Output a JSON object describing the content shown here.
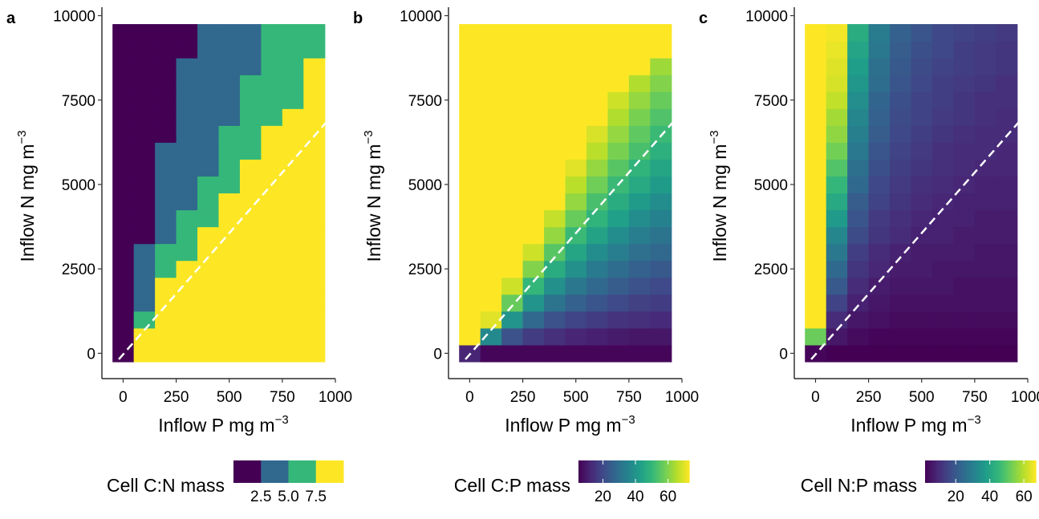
{
  "figure": {
    "refline_color": "#ffffff",
    "colors": {
      "viridis": [
        "#440154",
        "#482878",
        "#3e4a89",
        "#31688e",
        "#26828e",
        "#1f9e89",
        "#35b779",
        "#6ece58",
        "#b5de2b",
        "#fde725"
      ]
    }
  },
  "chart_data": [
    {
      "panel": "a",
      "type": "heatmap",
      "xlabel": "Inflow P mg m",
      "xlabel_sup": "−3",
      "ylabel": "Inflow N mg m",
      "ylabel_sup": "−3",
      "xlim": [
        -100,
        1000
      ],
      "ylim": [
        -750,
        10250
      ],
      "xticks": [
        0,
        250,
        500,
        750,
        1000
      ],
      "yticks": [
        0,
        2500,
        5000,
        7500,
        10000
      ],
      "xtick_labels": [
        "0",
        "250",
        "500",
        "750",
        "1000"
      ],
      "ytick_labels": [
        "0",
        "2500",
        "5000",
        "7500",
        "10000"
      ],
      "x_centers": [
        0,
        100,
        200,
        300,
        400,
        500,
        600,
        700,
        800,
        900
      ],
      "y_centers": [
        0,
        500,
        1000,
        1500,
        2000,
        2500,
        3000,
        3500,
        4000,
        4500,
        5000,
        5500,
        6000,
        6500,
        7000,
        7500,
        8000,
        8500,
        9000,
        9500
      ],
      "legend": {
        "title": "Cell C:N mass",
        "kind": "discrete",
        "colors": [
          "#440154",
          "#31688e",
          "#35b779",
          "#fde725"
        ],
        "labels": [
          "2.5",
          "5.0",
          "7.5"
        ]
      },
      "reference_line": {
        "style": "dashed",
        "x": [
          -100,
          1000
        ],
        "y": [
          -750,
          7150
        ]
      },
      "description": "Discretized C:N classes (1=lowest purple, 4=highest yellow); rows from N=0 upward",
      "values": [
        [
          1,
          4,
          4,
          4,
          4,
          4,
          4,
          4,
          4,
          4
        ],
        [
          1,
          4,
          4,
          4,
          4,
          4,
          4,
          4,
          4,
          4
        ],
        [
          1,
          3,
          4,
          4,
          4,
          4,
          4,
          4,
          4,
          4
        ],
        [
          1,
          2,
          4,
          4,
          4,
          4,
          4,
          4,
          4,
          4
        ],
        [
          1,
          2,
          4,
          4,
          4,
          4,
          4,
          4,
          4,
          4
        ],
        [
          1,
          2,
          3,
          4,
          4,
          4,
          4,
          4,
          4,
          4
        ],
        [
          1,
          2,
          3,
          3,
          4,
          4,
          4,
          4,
          4,
          4
        ],
        [
          1,
          1,
          2,
          3,
          4,
          4,
          4,
          4,
          4,
          4
        ],
        [
          1,
          1,
          2,
          3,
          3,
          4,
          4,
          4,
          4,
          4
        ],
        [
          1,
          1,
          2,
          2,
          3,
          4,
          4,
          4,
          4,
          4
        ],
        [
          1,
          1,
          2,
          2,
          3,
          3,
          4,
          4,
          4,
          4
        ],
        [
          1,
          1,
          2,
          2,
          2,
          3,
          4,
          4,
          4,
          4
        ],
        [
          1,
          1,
          2,
          2,
          2,
          3,
          3,
          4,
          4,
          4
        ],
        [
          1,
          1,
          1,
          2,
          2,
          3,
          3,
          4,
          4,
          4
        ],
        [
          1,
          1,
          1,
          2,
          2,
          2,
          3,
          3,
          4,
          4
        ],
        [
          1,
          1,
          1,
          2,
          2,
          2,
          3,
          3,
          3,
          4
        ],
        [
          1,
          1,
          1,
          2,
          2,
          2,
          3,
          3,
          3,
          4
        ],
        [
          1,
          1,
          1,
          2,
          2,
          2,
          2,
          3,
          3,
          4
        ],
        [
          1,
          1,
          1,
          1,
          2,
          2,
          2,
          3,
          3,
          3
        ],
        [
          1,
          1,
          1,
          1,
          2,
          2,
          2,
          3,
          3,
          3
        ]
      ]
    },
    {
      "panel": "b",
      "type": "heatmap",
      "xlabel": "Inflow P mg m",
      "xlabel_sup": "−3",
      "ylabel": "Inflow N mg m",
      "ylabel_sup": "−3",
      "xlim": [
        -100,
        1000
      ],
      "ylim": [
        -750,
        10250
      ],
      "xticks": [
        0,
        250,
        500,
        750,
        1000
      ],
      "yticks": [
        0,
        2500,
        5000,
        7500,
        10000
      ],
      "xtick_labels": [
        "0",
        "250",
        "500",
        "750",
        "1000"
      ],
      "ytick_labels": [
        "0",
        "2500",
        "5000",
        "7500",
        "10000"
      ],
      "x_centers": [
        0,
        100,
        200,
        300,
        400,
        500,
        600,
        700,
        800,
        900
      ],
      "y_centers": [
        0,
        500,
        1000,
        1500,
        2000,
        2500,
        3000,
        3500,
        4000,
        4500,
        5000,
        5500,
        6000,
        6500,
        7000,
        7500,
        8000,
        8500,
        9000,
        9500
      ],
      "legend": {
        "title": "Cell C:P mass",
        "kind": "continuous",
        "min": 5,
        "max": 73,
        "ticks": [
          20,
          40,
          60
        ],
        "labels": [
          "20",
          "40",
          "60"
        ]
      },
      "reference_line": {
        "style": "dashed",
        "x": [
          -100,
          1000
        ],
        "y": [
          -750,
          7150
        ]
      },
      "description": "Cell C:P mass; rows from N=0 upward",
      "values": [
        [
          12,
          6,
          6,
          6,
          6,
          6,
          6,
          6,
          6,
          6
        ],
        [
          73,
          37,
          22,
          17,
          14,
          12,
          11,
          10,
          9,
          9
        ],
        [
          73,
          70,
          40,
          28,
          22,
          19,
          17,
          15,
          14,
          13
        ],
        [
          73,
          73,
          57,
          40,
          31,
          26,
          23,
          20,
          18,
          17
        ],
        [
          73,
          73,
          68,
          50,
          39,
          32,
          28,
          25,
          22,
          20
        ],
        [
          73,
          73,
          73,
          60,
          47,
          39,
          33,
          29,
          26,
          24
        ],
        [
          73,
          73,
          73,
          68,
          55,
          45,
          38,
          34,
          30,
          28
        ],
        [
          73,
          73,
          73,
          73,
          62,
          51,
          44,
          38,
          34,
          31
        ],
        [
          73,
          73,
          73,
          73,
          67,
          57,
          49,
          43,
          38,
          35
        ],
        [
          73,
          73,
          73,
          73,
          73,
          62,
          53,
          47,
          42,
          38
        ],
        [
          73,
          73,
          73,
          73,
          73,
          66,
          58,
          51,
          46,
          42
        ],
        [
          73,
          73,
          73,
          73,
          73,
          70,
          62,
          55,
          49,
          45
        ],
        [
          73,
          73,
          73,
          73,
          73,
          73,
          66,
          59,
          53,
          48
        ],
        [
          73,
          73,
          73,
          73,
          73,
          73,
          69,
          62,
          56,
          51
        ],
        [
          73,
          73,
          73,
          73,
          73,
          73,
          73,
          65,
          59,
          54
        ],
        [
          73,
          73,
          73,
          73,
          73,
          73,
          73,
          68,
          62,
          57
        ],
        [
          73,
          73,
          73,
          73,
          73,
          73,
          73,
          73,
          65,
          60
        ],
        [
          73,
          73,
          73,
          73,
          73,
          73,
          73,
          73,
          73,
          63
        ],
        [
          73,
          73,
          73,
          73,
          73,
          73,
          73,
          73,
          73,
          73
        ],
        [
          73,
          73,
          73,
          73,
          73,
          73,
          73,
          73,
          73,
          73
        ]
      ]
    },
    {
      "panel": "c",
      "type": "heatmap",
      "xlabel": "Inflow P mg m",
      "xlabel_sup": "−3",
      "ylabel": "Inflow N mg m",
      "ylabel_sup": "−3",
      "xlim": [
        -100,
        1000
      ],
      "ylim": [
        -750,
        10250
      ],
      "xticks": [
        0,
        250,
        500,
        750,
        1000
      ],
      "yticks": [
        0,
        2500,
        5000,
        7500,
        10000
      ],
      "xtick_labels": [
        "0",
        "250",
        "500",
        "750",
        "1000"
      ],
      "ytick_labels": [
        "0",
        "2500",
        "5000",
        "7500",
        "10000"
      ],
      "x_centers": [
        0,
        100,
        200,
        300,
        400,
        500,
        600,
        700,
        800,
        900
      ],
      "y_centers": [
        0,
        500,
        1000,
        1500,
        2000,
        2500,
        3000,
        3500,
        4000,
        4500,
        5000,
        5500,
        6000,
        6500,
        7000,
        7500,
        8000,
        8500,
        9000,
        9500
      ],
      "legend": {
        "title": "Cell N:P mass",
        "kind": "continuous",
        "min": 2,
        "max": 67,
        "ticks": [
          20,
          40,
          60
        ],
        "labels": [
          "20",
          "40",
          "60"
        ]
      },
      "reference_line": {
        "style": "dashed",
        "x": [
          -100,
          1000
        ],
        "y": [
          -750,
          7150
        ]
      },
      "description": "Cell N:P mass; rows from N=0 upward",
      "values": [
        [
          3,
          2,
          2,
          2,
          2,
          2,
          2,
          2,
          2,
          2
        ],
        [
          52,
          6,
          4,
          3,
          3,
          3,
          3,
          3,
          3,
          3
        ],
        [
          67,
          10,
          6,
          5,
          4,
          4,
          4,
          4,
          4,
          4
        ],
        [
          67,
          15,
          8,
          6,
          5,
          5,
          5,
          5,
          5,
          5
        ],
        [
          67,
          20,
          10,
          7,
          6,
          6,
          6,
          5,
          5,
          5
        ],
        [
          67,
          24,
          12,
          9,
          7,
          7,
          6,
          6,
          6,
          6
        ],
        [
          67,
          28,
          14,
          10,
          8,
          7,
          7,
          7,
          6,
          6
        ],
        [
          67,
          32,
          17,
          12,
          10,
          8,
          8,
          7,
          7,
          7
        ],
        [
          67,
          37,
          19,
          13,
          11,
          9,
          8,
          8,
          7,
          7
        ],
        [
          67,
          41,
          21,
          15,
          12,
          10,
          9,
          8,
          8,
          8
        ],
        [
          67,
          45,
          24,
          16,
          13,
          11,
          10,
          9,
          8,
          8
        ],
        [
          67,
          49,
          26,
          18,
          14,
          12,
          11,
          10,
          9,
          9
        ],
        [
          67,
          53,
          28,
          19,
          15,
          13,
          11,
          10,
          10,
          9
        ],
        [
          67,
          56,
          30,
          21,
          16,
          14,
          12,
          11,
          10,
          10
        ],
        [
          67,
          58,
          32,
          22,
          17,
          15,
          13,
          12,
          11,
          10
        ],
        [
          67,
          61,
          34,
          23,
          18,
          15,
          14,
          12,
          11,
          11
        ],
        [
          67,
          63,
          36,
          25,
          19,
          16,
          14,
          13,
          12,
          11
        ],
        [
          67,
          64,
          38,
          26,
          20,
          17,
          15,
          14,
          13,
          12
        ],
        [
          67,
          65,
          40,
          28,
          21,
          18,
          16,
          14,
          13,
          12
        ],
        [
          67,
          66,
          42,
          29,
          22,
          19,
          16,
          15,
          14,
          13
        ]
      ]
    }
  ]
}
